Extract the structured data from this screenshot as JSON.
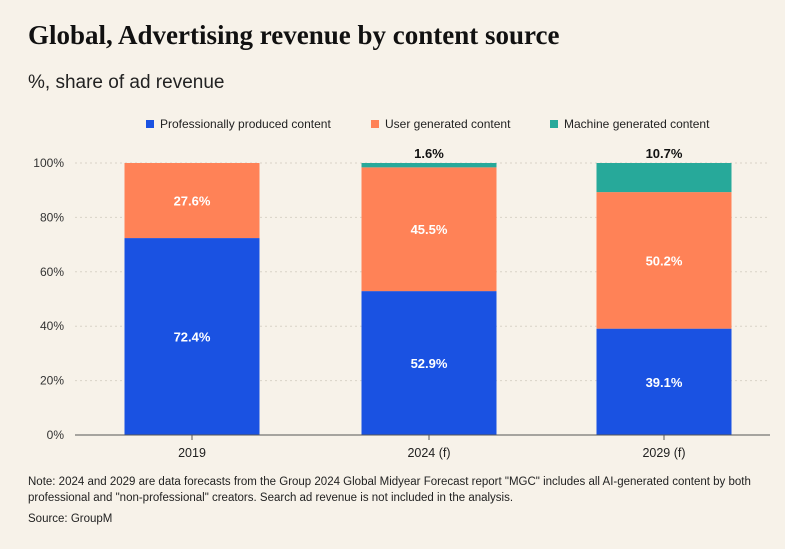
{
  "chart_data": {
    "type": "bar",
    "stacked": true,
    "title": "Global, Advertising revenue by content source",
    "subtitle": "%, share of ad revenue",
    "categories": [
      "2019",
      "2024 (f)",
      "2029 (f)"
    ],
    "series": [
      {
        "name": "Professionally produced content",
        "color": "#1a52e2",
        "values": [
          72.4,
          52.9,
          39.1
        ],
        "labels": [
          "72.4%",
          "52.9%",
          "39.1%"
        ]
      },
      {
        "name": "User generated content",
        "color": "#ff8257",
        "values": [
          27.6,
          45.5,
          50.2
        ],
        "labels": [
          "27.6%",
          "45.5%",
          "50.2%"
        ]
      },
      {
        "name": "Machine generated content",
        "color": "#27a99a",
        "values": [
          0,
          1.6,
          10.7
        ],
        "labels": [
          "",
          "1.6%",
          "10.7%"
        ]
      }
    ],
    "ylim": [
      0,
      100
    ],
    "yticks": [
      "0%",
      "20%",
      "40%",
      "60%",
      "80%",
      "100%"
    ],
    "ytick_values": [
      0,
      20,
      40,
      60,
      80,
      100
    ],
    "grid": true,
    "legend_position": "top"
  },
  "note": "Note: 2024 and 2029 are data forecasts from the Group 2024 Global Midyear Forecast report \"MGC\" includes all AI-generated content by both professional and \"non-professional\" creators. Search ad revenue is not included in the analysis.",
  "source": "Source: GroupM"
}
